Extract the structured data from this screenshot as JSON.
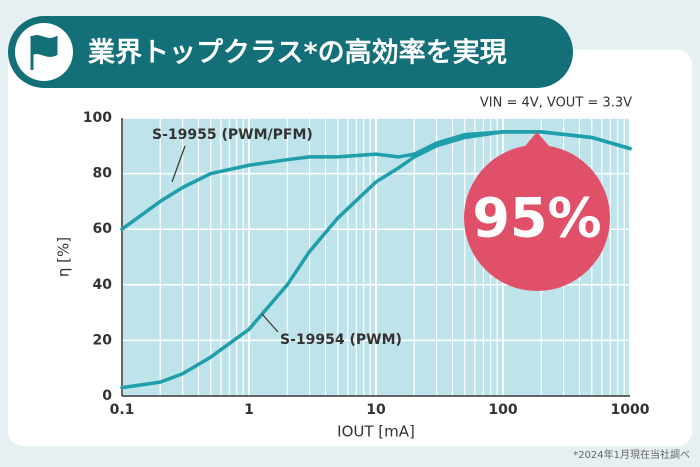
{
  "chart_data": {
    "type": "line",
    "title": "業界トップクラス*の高効率を実現",
    "condition": "VIN = 4V, VOUT = 3.3V",
    "annotation": "95%",
    "note": "*2024年1月現在当社調べ",
    "x_label": "IOUT [mA]",
    "y_label": "η [%]",
    "x": [
      0.1,
      0.2,
      0.3,
      0.5,
      1,
      2,
      3,
      5,
      10,
      15,
      20,
      30,
      50,
      100,
      200,
      500,
      1000
    ],
    "series": [
      {
        "name": "S-19955 (PWM/PFM)",
        "color": "#1f9fab",
        "values": [
          60,
          70,
          75,
          80,
          83,
          85,
          86,
          86,
          87,
          86,
          87,
          91,
          94,
          95,
          95,
          93,
          89
        ]
      },
      {
        "name": "S-19954 (PWM)",
        "color": "#1f9fab",
        "values": [
          3,
          5,
          8,
          14,
          24,
          40,
          52,
          64,
          77,
          82,
          86,
          90,
          93,
          95,
          95,
          93,
          89
        ]
      }
    ],
    "xlim": [
      0.1,
      1000
    ],
    "xticks": [
      0.1,
      1,
      10,
      100,
      1000
    ],
    "xscale": "log",
    "ylim": [
      0,
      100
    ],
    "yticks": [
      0,
      20,
      40,
      60,
      80,
      100
    ],
    "grid": true
  }
}
